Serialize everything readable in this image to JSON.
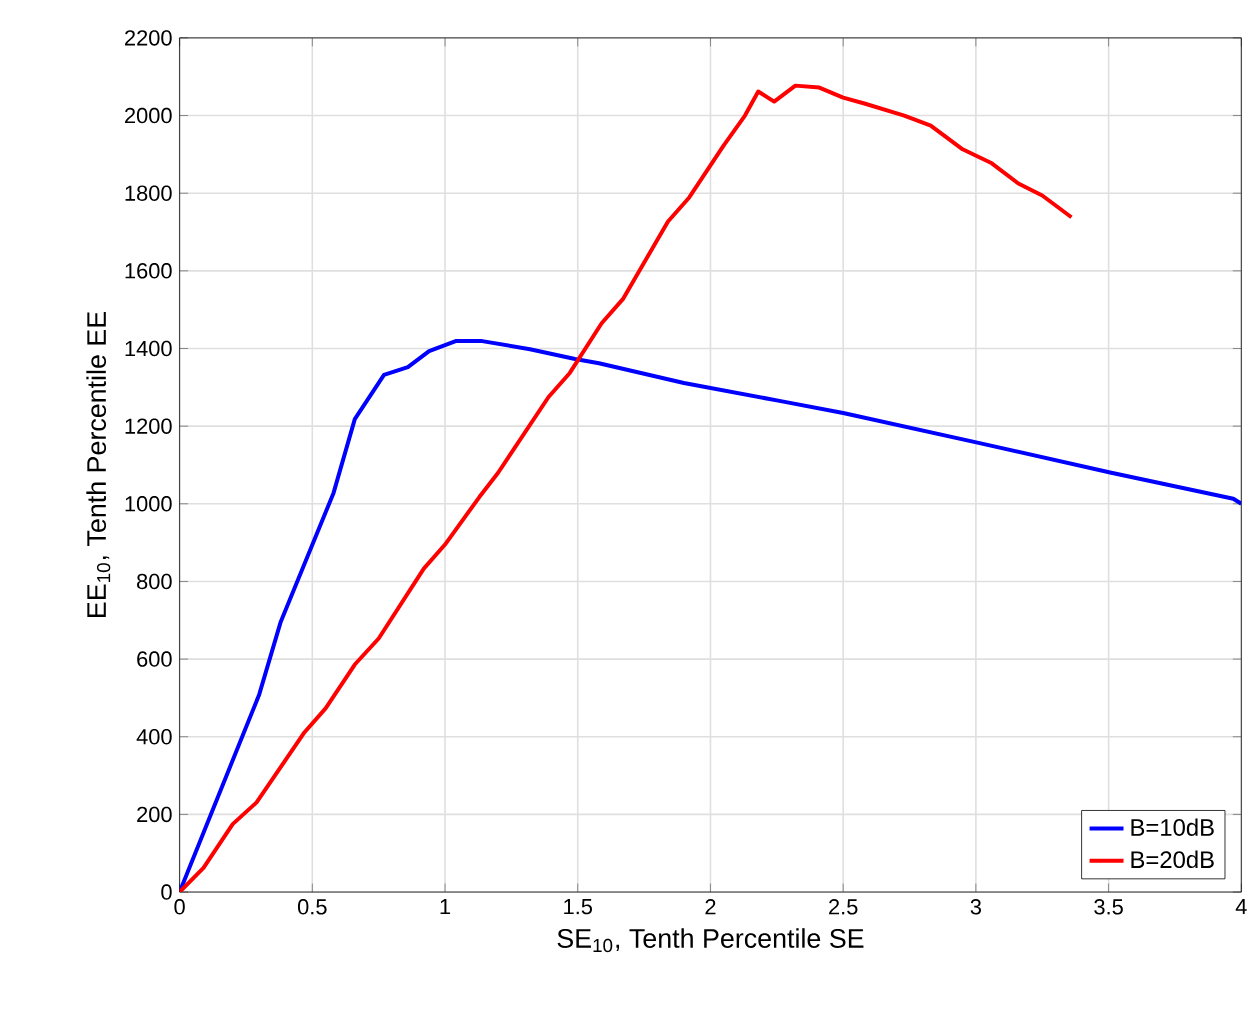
{
  "chart_data": {
    "type": "line",
    "xlabel": "SE$_{10}$, Tenth Percentile SE",
    "ylabel": "EE$_{10}$, Tenth Percentile EE",
    "xlim": [
      0,
      4
    ],
    "ylim": [
      0,
      2200
    ],
    "xticks": [
      0,
      0.5,
      1,
      1.5,
      2,
      2.5,
      3,
      3.5,
      4
    ],
    "yticks": [
      0,
      200,
      400,
      600,
      800,
      1000,
      1200,
      1400,
      1600,
      1800,
      2000,
      2200
    ],
    "grid": true,
    "legend": "bottom right",
    "line_style": "solid",
    "marker": "none",
    "series": [
      {
        "name": "B=10dB",
        "color": "#0000ff",
        "x": [
          0,
          0.3,
          0.38,
          0.58,
          0.66,
          0.77,
          0.86,
          0.94,
          1.04,
          1.14,
          1.32,
          1.49,
          1.58,
          1.9,
          2.26,
          2.5,
          3.01,
          3.51,
          3.97,
          4.0
        ],
        "values": [
          0,
          509,
          694,
          1028,
          1218,
          1332,
          1352,
          1393,
          1419,
          1419,
          1398,
          1373,
          1362,
          1311,
          1265,
          1234,
          1157,
          1080,
          1013,
          1000
        ]
      },
      {
        "name": "B=20dB",
        "color": "#ff0000",
        "x": [
          0,
          0.09,
          0.2,
          0.29,
          0.47,
          0.55,
          0.66,
          0.75,
          0.92,
          1.0,
          1.13,
          1.2,
          1.39,
          1.47,
          1.59,
          1.67,
          1.84,
          1.92,
          2.05,
          2.13,
          2.18,
          2.24,
          2.32,
          2.41,
          2.5,
          2.58,
          2.73,
          2.83,
          2.95,
          3.06,
          3.16,
          3.25,
          3.36
        ],
        "values": [
          0,
          62,
          175,
          231,
          411,
          473,
          586,
          653,
          833,
          895,
          1018,
          1080,
          1275,
          1337,
          1465,
          1527,
          1727,
          1789,
          1923,
          2000,
          2062,
          2036,
          2077,
          2072,
          2046,
          2031,
          2000,
          1974,
          1913,
          1877,
          1825,
          1794,
          1738
        ]
      }
    ]
  }
}
